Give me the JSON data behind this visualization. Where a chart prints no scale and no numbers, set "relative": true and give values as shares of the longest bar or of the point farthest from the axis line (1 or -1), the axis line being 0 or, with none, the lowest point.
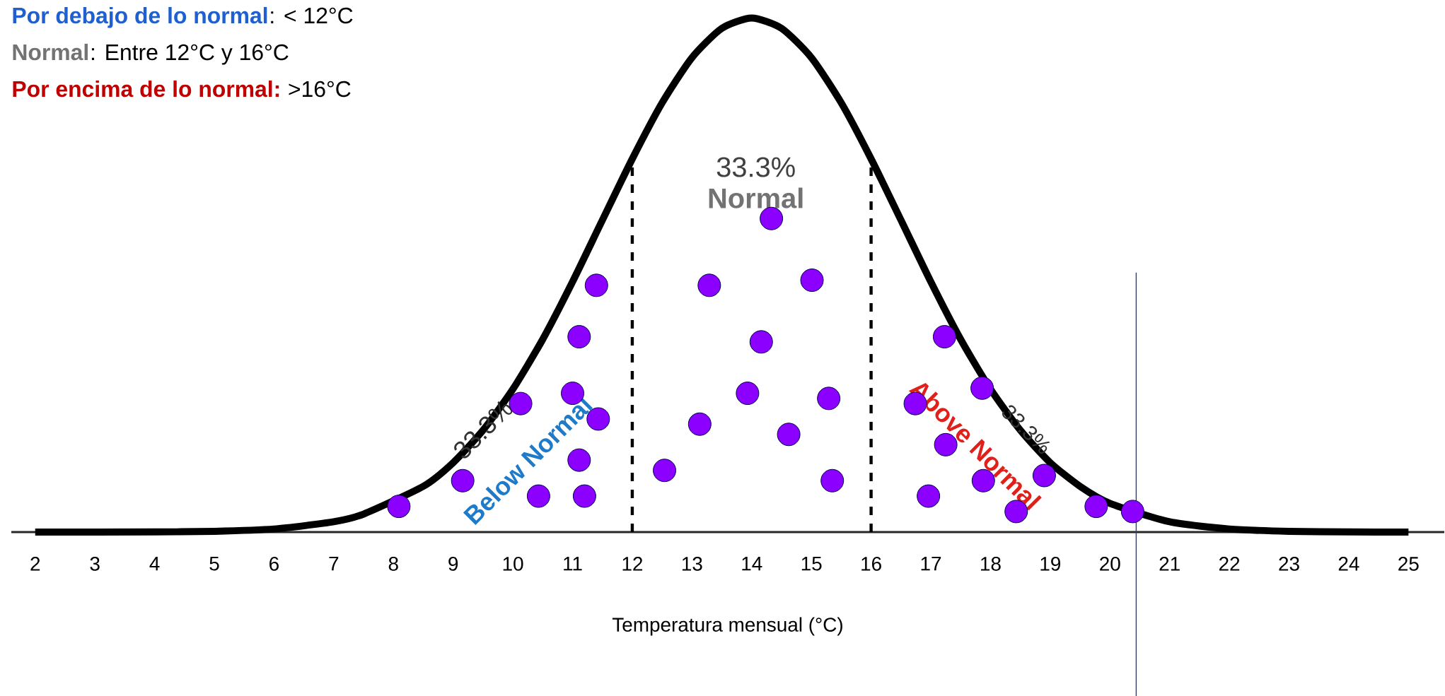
{
  "chart_data": {
    "type": "scatter",
    "relative": true,
    "xlabel": "Temperatura mensual (°C)",
    "xlim": [
      1.6,
      25.6
    ],
    "xticks": [
      2,
      3,
      4,
      5,
      6,
      7,
      8,
      9,
      10,
      11,
      12,
      13,
      14,
      15,
      16,
      17,
      18,
      19,
      20,
      21,
      22,
      23,
      24,
      25
    ],
    "marker": "circle",
    "grid": false,
    "series": [
      {
        "type": "line",
        "color": "#000000",
        "marker": "none",
        "x": [
          2,
          4,
          5,
          6,
          7,
          7.5,
          8.5,
          9,
          9.5,
          10,
          10.5,
          11,
          11.5,
          12,
          12.5,
          13,
          13.5,
          14,
          14.5,
          15,
          15.5,
          16,
          16.5,
          17,
          17.5,
          18,
          18.5,
          19,
          19.5,
          20,
          21,
          22,
          23,
          24,
          25
        ],
        "values": [
          0,
          0.0003,
          0.0015,
          0.006,
          0.02,
          0.035,
          0.089,
          0.135,
          0.198,
          0.278,
          0.375,
          0.487,
          0.607,
          0.726,
          0.835,
          0.923,
          0.98,
          1,
          0.98,
          0.923,
          0.835,
          0.726,
          0.607,
          0.487,
          0.375,
          0.278,
          0.198,
          0.135,
          0.089,
          0.056,
          0.02,
          0.006,
          0.0015,
          0.0003,
          0
        ]
      },
      {
        "color": "#8b00ff",
        "x": [
          8.09,
          9.16,
          10.13,
          10.43,
          11.0,
          11.11,
          11.11,
          11.2,
          11.4,
          11.43,
          12.54,
          13.13,
          13.29,
          13.93,
          14.16,
          14.33,
          14.62,
          15.01,
          15.29,
          15.35,
          16.74,
          16.96,
          17.23,
          17.25,
          17.86,
          17.88,
          18.43,
          18.9,
          19.77,
          20.38
        ],
        "values": [
          0.05,
          0.1,
          0.25,
          0.07,
          0.27,
          0.38,
          0.14,
          0.07,
          0.48,
          0.22,
          0.12,
          0.21,
          0.48,
          0.27,
          0.37,
          0.61,
          0.19,
          0.49,
          0.26,
          0.1,
          0.25,
          0.07,
          0.38,
          0.17,
          0.28,
          0.1,
          0.04,
          0.11,
          0.05,
          0.04
        ]
      }
    ],
    "ref_lines": [
      {
        "axis": "x",
        "value": 12,
        "color": "#000000",
        "line_style": "dashed"
      },
      {
        "axis": "x",
        "value": 16,
        "color": "#000000",
        "line_style": "dashed"
      },
      {
        "axis": "x",
        "value": 20.44,
        "color": "#34425e",
        "line_style": "solid"
      }
    ],
    "annotations": [
      "Por debajo de lo normal",
      ": < 12°C",
      "Normal",
      ": Entre 12°C y 16°C",
      "Por encima de lo normal:",
      " >16°C",
      "33.3%",
      "Normal",
      "33.3%",
      "Below Normal",
      "Above Normal",
      "33.3%"
    ]
  }
}
